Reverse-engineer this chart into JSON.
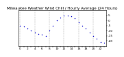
{
  "title": "Milwaukee Weather Wind Chill / Hourly Average (24 Hours)",
  "title_fontsize": 4.0,
  "hours": [
    0,
    1,
    2,
    3,
    4,
    5,
    6,
    7,
    8,
    9,
    10,
    11,
    12,
    13,
    14,
    15,
    16,
    17,
    18,
    19,
    20,
    21,
    22,
    23
  ],
  "wind_chill": [
    -5,
    -6,
    -8,
    -10,
    -12,
    -13,
    -14,
    -15,
    -10,
    -5,
    0,
    3,
    5,
    5,
    4,
    2,
    -2,
    -5,
    -8,
    -12,
    -15,
    -18,
    -21,
    -22
  ],
  "dot_color": "#0000cc",
  "dot_size": 1.2,
  "bg_color": "#ffffff",
  "grid_color": "#aaaaaa",
  "ylim": [
    -25,
    10
  ],
  "yticks": [
    5,
    0,
    -5,
    -10,
    -15,
    -20
  ],
  "ytick_labels": [
    "5",
    "0",
    "-5",
    "-10",
    "-15",
    "-20"
  ],
  "tick_fontsize": 3.2,
  "grid_positions": [
    0,
    4,
    8,
    12,
    16,
    20
  ],
  "xlim": [
    -0.5,
    23.5
  ]
}
